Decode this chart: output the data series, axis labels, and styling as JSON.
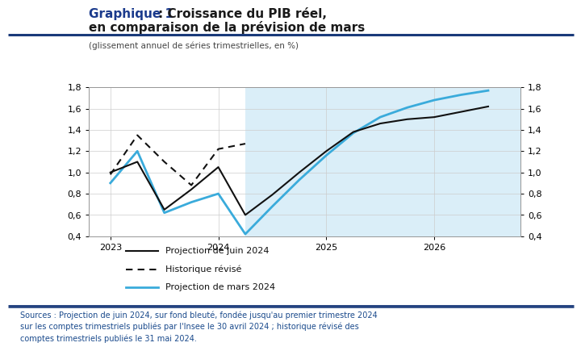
{
  "title_bold": "Graphique 1 ",
  "title_colon": ": Croissance du PIB réel,",
  "title_line2": "en comparaison de la prévision de mars",
  "subtitle": "(glissement annuel de séries trimestrielles, en %)",
  "ylim": [
    0.4,
    1.8
  ],
  "yticks": [
    0.4,
    0.6,
    0.8,
    1.0,
    1.2,
    1.4,
    1.6,
    1.8
  ],
  "xlim_start": 2022.8,
  "xlim_end": 2026.8,
  "xticks": [
    2023,
    2024,
    2025,
    2026
  ],
  "bg_shade_start": 2024.25,
  "bg_shade_end": 2026.8,
  "bg_shade_color": "#daeef8",
  "proj_juin_x": [
    2023.0,
    2023.25,
    2023.5,
    2023.75,
    2024.0,
    2024.25,
    2024.5,
    2024.75,
    2025.0,
    2025.25,
    2025.5,
    2025.75,
    2026.0,
    2026.25,
    2026.5
  ],
  "proj_juin_y": [
    1.0,
    1.1,
    0.65,
    0.84,
    1.05,
    0.6,
    0.79,
    1.0,
    1.2,
    1.38,
    1.46,
    1.5,
    1.52,
    1.57,
    1.62
  ],
  "hist_revise_x": [
    2023.0,
    2023.25,
    2023.5,
    2023.75,
    2024.0,
    2024.25
  ],
  "hist_revise_y": [
    0.98,
    1.35,
    1.1,
    0.88,
    1.22,
    1.27
  ],
  "proj_mars_x": [
    2023.0,
    2023.25,
    2023.5,
    2023.75,
    2024.0,
    2024.25,
    2024.5,
    2024.75,
    2025.0,
    2025.25,
    2025.5,
    2025.75,
    2026.0,
    2026.25,
    2026.5
  ],
  "proj_mars_y": [
    0.9,
    1.2,
    0.62,
    0.72,
    0.8,
    0.42,
    0.68,
    0.93,
    1.16,
    1.37,
    1.52,
    1.61,
    1.68,
    1.73,
    1.77
  ],
  "proj_juin_color": "#111111",
  "hist_revise_color": "#111111",
  "proj_mars_color": "#3aabdb",
  "legend_labels": [
    "Projection de juin 2024",
    "Historique révisé",
    "Projection de mars 2024"
  ],
  "sources_text": "Sources : Projection de juin 2024, sur fond bleuté, fondée jusqu'au premier trimestre 2024\nsur les comptes trimestriels publiés par l'Insee le 30 avril 2024 ; historique révisé des\ncomptes trimestriels publiés le 31 mai 2024.",
  "title_color": "#1a1a1a",
  "title_blue_color": "#1a3a8c",
  "sources_color": "#1a4a8c",
  "border_color": "#1a3a7a",
  "grid_color": "#cccccc",
  "background_color": "#ffffff"
}
